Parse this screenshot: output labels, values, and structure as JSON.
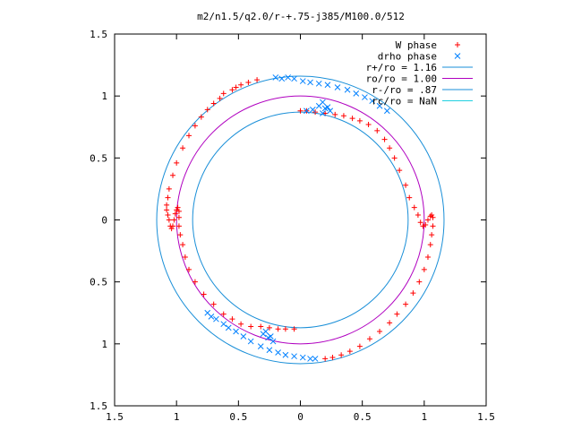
{
  "chart_data": {
    "type": "scatter",
    "title": "m2/n1.5/q2.0/r-+.75-j385/M100.0/512",
    "xlim": [
      -1.5,
      1.5
    ],
    "ylim": [
      -1.5,
      1.5
    ],
    "x_tick_values": [
      -1.5,
      -1,
      -0.5,
      0,
      0.5,
      1,
      1.5
    ],
    "x_tick_labels": [
      "1.5",
      "1",
      "0.5",
      "0",
      "0.5",
      "1",
      "1.5"
    ],
    "y_tick_values": [
      1.5,
      1,
      0.5,
      0,
      -0.5,
      -1,
      -1.5
    ],
    "y_tick_labels": [
      "1.5",
      "1",
      "0.5",
      "0",
      "0.5",
      "1",
      "1.5"
    ],
    "grid": false,
    "legend_position": "top-right",
    "legend": [
      {
        "label": "W phase",
        "marker": "plus",
        "color": "#ff0000"
      },
      {
        "label": "drho phase",
        "marker": "x",
        "color": "#0080ff"
      },
      {
        "label": "r+/ro = 1.16",
        "marker": "line",
        "color": "#1a8fd8"
      },
      {
        "label": "ro/ro = 1.00",
        "marker": "line",
        "color": "#b000c0"
      },
      {
        "label": "r-/ro = .87",
        "marker": "line",
        "color": "#1a8fd8"
      },
      {
        "label": "rc/ro = NaN",
        "marker": "line",
        "color": "#20d0e0"
      }
    ],
    "circles": [
      {
        "radius": 1.16,
        "color": "#1a8fd8"
      },
      {
        "radius": 1.0,
        "color": "#b000c0"
      },
      {
        "radius": 0.87,
        "color": "#1a8fd8"
      }
    ],
    "series": [
      {
        "name": "W phase",
        "marker": "plus",
        "color": "#ff0000",
        "points": [
          [
            -0.35,
            1.13
          ],
          [
            -0.42,
            1.11
          ],
          [
            -0.48,
            1.09
          ],
          [
            -0.52,
            1.07
          ],
          [
            -0.55,
            1.05
          ],
          [
            -0.62,
            1.02
          ],
          [
            -0.65,
            0.98
          ],
          [
            -0.7,
            0.94
          ],
          [
            -0.75,
            0.89
          ],
          [
            -0.8,
            0.83
          ],
          [
            -0.85,
            0.76
          ],
          [
            -0.9,
            0.68
          ],
          [
            -0.95,
            0.58
          ],
          [
            -1.0,
            0.46
          ],
          [
            -1.03,
            0.36
          ],
          [
            -1.06,
            0.25
          ],
          [
            -1.07,
            0.18
          ],
          [
            -1.08,
            0.12
          ],
          [
            -1.08,
            0.08
          ],
          [
            -1.07,
            0.04
          ],
          [
            -1.06,
            0.0
          ],
          [
            -1.05,
            -0.05
          ],
          [
            -1.04,
            -0.07
          ],
          [
            -1.03,
            -0.05
          ],
          [
            -1.02,
            0.0
          ],
          [
            -1.01,
            0.05
          ],
          [
            -1.0,
            0.08
          ],
          [
            -0.99,
            0.1
          ],
          [
            -0.98,
            0.07
          ],
          [
            -0.98,
            0.02
          ],
          [
            -0.98,
            -0.05
          ],
          [
            -0.97,
            -0.12
          ],
          [
            -0.95,
            -0.2
          ],
          [
            -0.93,
            -0.3
          ],
          [
            -0.9,
            -0.4
          ],
          [
            -0.85,
            -0.5
          ],
          [
            -0.78,
            -0.6
          ],
          [
            -0.7,
            -0.68
          ],
          [
            -0.62,
            -0.76
          ],
          [
            -0.55,
            -0.8
          ],
          [
            -0.48,
            -0.84
          ],
          [
            -0.4,
            -0.86
          ],
          [
            -0.32,
            -0.86
          ],
          [
            -0.25,
            -0.87
          ],
          [
            -0.18,
            -0.88
          ],
          [
            -0.12,
            -0.88
          ],
          [
            -0.05,
            -0.88
          ],
          [
            0.0,
            0.88
          ],
          [
            0.05,
            0.88
          ],
          [
            0.12,
            0.87
          ],
          [
            0.2,
            0.86
          ],
          [
            0.28,
            0.85
          ],
          [
            0.35,
            0.84
          ],
          [
            0.42,
            0.82
          ],
          [
            0.48,
            0.8
          ],
          [
            0.55,
            0.77
          ],
          [
            0.62,
            0.72
          ],
          [
            0.68,
            0.65
          ],
          [
            0.72,
            0.58
          ],
          [
            0.76,
            0.5
          ],
          [
            0.8,
            0.4
          ],
          [
            0.85,
            0.28
          ],
          [
            0.88,
            0.18
          ],
          [
            0.92,
            0.1
          ],
          [
            0.95,
            0.04
          ],
          [
            0.97,
            -0.02
          ],
          [
            0.99,
            -0.05
          ],
          [
            1.01,
            -0.04
          ],
          [
            1.03,
            0.0
          ],
          [
            1.05,
            0.03
          ],
          [
            1.06,
            0.04
          ],
          [
            1.07,
            0.02
          ],
          [
            1.07,
            -0.05
          ],
          [
            1.06,
            -0.12
          ],
          [
            1.05,
            -0.2
          ],
          [
            1.03,
            -0.3
          ],
          [
            1.0,
            -0.4
          ],
          [
            0.96,
            -0.5
          ],
          [
            0.91,
            -0.59
          ],
          [
            0.85,
            -0.68
          ],
          [
            0.78,
            -0.76
          ],
          [
            0.72,
            -0.83
          ],
          [
            0.64,
            -0.9
          ],
          [
            0.56,
            -0.96
          ],
          [
            0.48,
            -1.02
          ],
          [
            0.4,
            -1.06
          ],
          [
            0.33,
            -1.09
          ],
          [
            0.26,
            -1.11
          ],
          [
            0.2,
            -1.12
          ]
        ]
      },
      {
        "name": "drho phase",
        "marker": "x",
        "color": "#0080ff",
        "points": [
          [
            -0.2,
            1.15
          ],
          [
            -0.15,
            1.14
          ],
          [
            -0.1,
            1.15
          ],
          [
            -0.05,
            1.14
          ],
          [
            0.02,
            1.12
          ],
          [
            0.08,
            1.11
          ],
          [
            0.15,
            1.1
          ],
          [
            0.22,
            1.09
          ],
          [
            0.3,
            1.07
          ],
          [
            0.38,
            1.05
          ],
          [
            0.45,
            1.02
          ],
          [
            0.52,
            0.99
          ],
          [
            0.58,
            0.96
          ],
          [
            0.64,
            0.92
          ],
          [
            0.7,
            0.88
          ],
          [
            0.05,
            0.88
          ],
          [
            0.1,
            0.89
          ],
          [
            0.15,
            0.92
          ],
          [
            0.18,
            0.95
          ],
          [
            0.2,
            0.9
          ],
          [
            0.18,
            0.86
          ],
          [
            0.22,
            0.91
          ],
          [
            0.24,
            0.88
          ],
          [
            -0.75,
            -0.75
          ],
          [
            -0.72,
            -0.78
          ],
          [
            -0.68,
            -0.8
          ],
          [
            -0.62,
            -0.84
          ],
          [
            -0.58,
            -0.87
          ],
          [
            -0.52,
            -0.9
          ],
          [
            -0.46,
            -0.94
          ],
          [
            -0.4,
            -0.98
          ],
          [
            -0.32,
            -1.02
          ],
          [
            -0.25,
            -1.05
          ],
          [
            -0.18,
            -1.07
          ],
          [
            -0.12,
            -1.09
          ],
          [
            -0.05,
            -1.1
          ],
          [
            0.02,
            -1.11
          ],
          [
            0.08,
            -1.12
          ],
          [
            0.12,
            -1.12
          ],
          [
            -0.28,
            -0.9
          ],
          [
            -0.24,
            -0.94
          ],
          [
            -0.22,
            -0.98
          ],
          [
            -0.26,
            -0.95
          ],
          [
            -0.3,
            -0.92
          ]
        ]
      }
    ]
  }
}
